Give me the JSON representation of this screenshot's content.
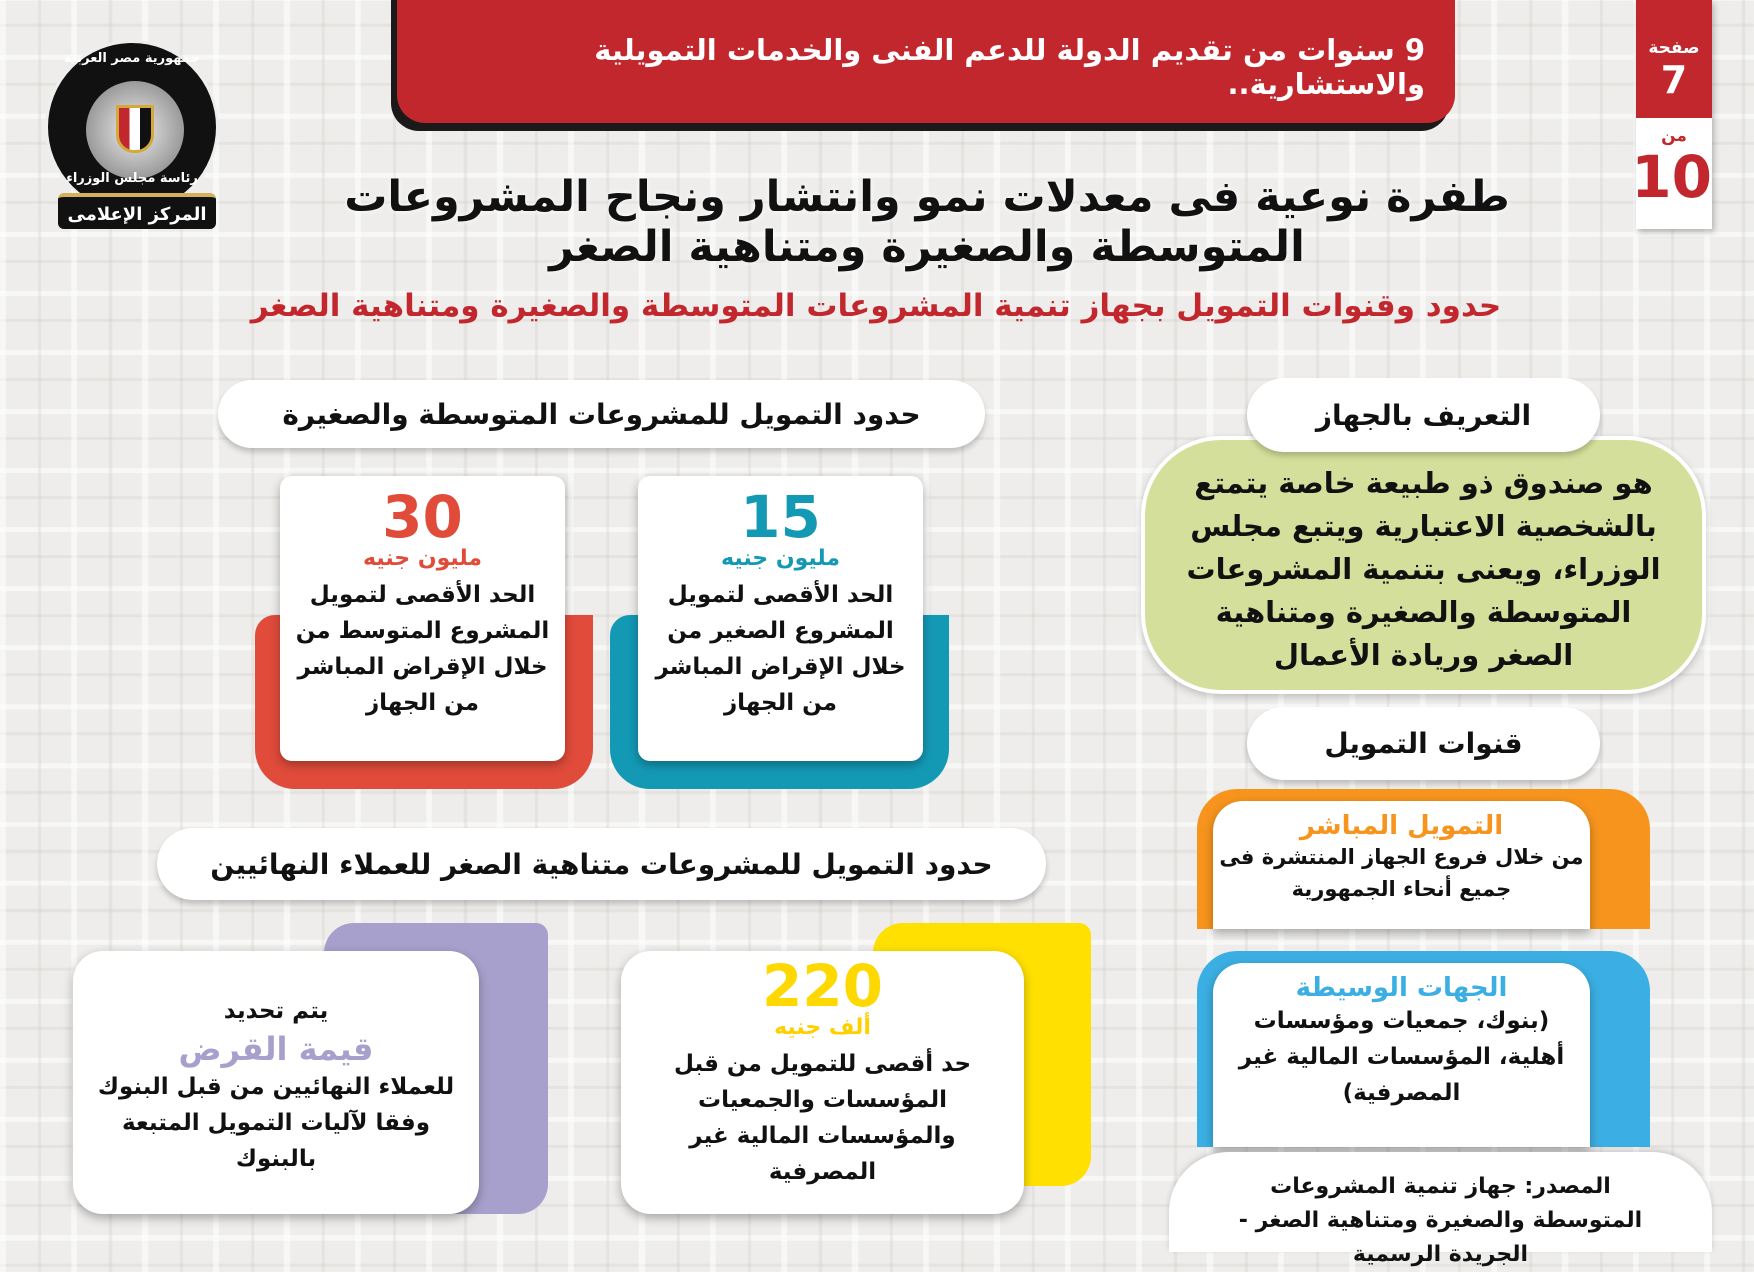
{
  "banner": {
    "text": "9 سنوات من تقديم الدولة للدعم الفنى والخدمات التمويلية والاستشارية.."
  },
  "page_badge": {
    "page_label": "صفحة",
    "page": "7",
    "of_label": "من",
    "total": "10"
  },
  "logo": {
    "top_text": "جمهورية مصر العربية",
    "middle_text": "رئاسة مجلس الوزراء",
    "ribbon": "المركز الإعلامى"
  },
  "title": "طفرة نوعية فى معدلات نمو وانتشار ونجاح المشروعات المتوسطة والصغيرة ومتناهية الصغر",
  "subtitle": "حدود وقنوات التمويل بجهاز تنمية المشروعات المتوسطة والصغيرة ومتناهية الصغر",
  "colors": {
    "red": "#c1272d",
    "card_red": "#e04b3a",
    "teal": "#1499b5",
    "green": "#d3df9b",
    "orange": "#f7941d",
    "blue": "#3bafe3",
    "purple": "#a7a0cc",
    "yellow": "#ffe000"
  },
  "about": {
    "heading": "التعريف بالجهاز",
    "text": "هو صندوق ذو طبيعة خاصة يتمتع بالشخصية الاعتبارية ويتبع مجلس الوزراء، ويعنى بتنمية المشروعات المتوسطة والصغيرة ومتناهية الصغر وريادة الأعمال"
  },
  "sme_limits": {
    "heading": "حدود التمويل للمشروعات المتوسطة والصغيرة",
    "cards": [
      {
        "value": "15",
        "unit": "مليون جنيه",
        "text": "الحد الأقصى لتمويل المشروع الصغير من خلال الإقراض المباشر من الجهاز"
      },
      {
        "value": "30",
        "unit": "مليون جنيه",
        "text": "الحد الأقصى لتمويل المشروع المتوسط من خلال الإقراض المباشر من الجهاز"
      }
    ]
  },
  "micro_limits": {
    "heading": "حدود التمويل للمشروعات متناهية الصغر للعملاء النهائيين",
    "cards": [
      {
        "value": "220",
        "unit": "ألف جنيه",
        "text": "حد أقصى للتمويل من قبل المؤسسات والجمعيات والمؤسسات المالية غير المصرفية"
      },
      {
        "pre": "يتم تحديد",
        "value": "قيمة القرض",
        "text": "للعملاء النهائيين من قبل البنوك وفقا لآليات التمويل المتبعة بالبنوك"
      }
    ]
  },
  "channels": {
    "heading": "قنوات التمويل",
    "items": [
      {
        "title": "التمويل المباشر",
        "text": "من خلال فروع الجهاز المنتشرة فى جميع أنحاء الجمهورية"
      },
      {
        "title": "الجهات الوسيطة",
        "text": "(بنوك، جمعيات ومؤسسات أهلية، المؤسسات المالية غير المصرفية)"
      }
    ]
  },
  "source": "المصدر: جهاز تنمية المشروعات المتوسطة والصغيرة ومتناهية الصغر - الجريدة الرسمية"
}
